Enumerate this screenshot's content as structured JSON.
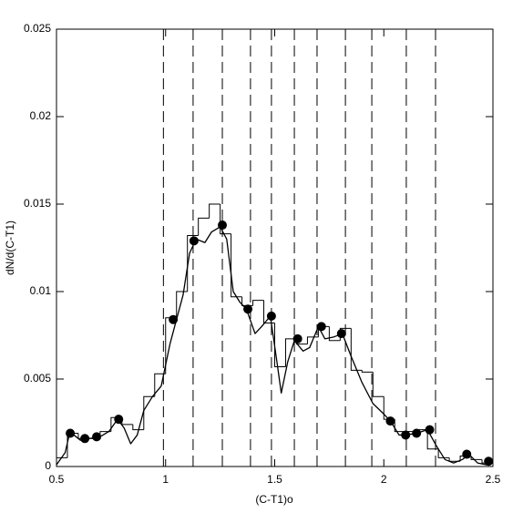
{
  "chart_data": {
    "type": "histogram",
    "xlabel": "(C-T1)o",
    "ylabel": "dN/d(C-T1)",
    "xlim": [
      0.5,
      2.5
    ],
    "ylim": [
      0,
      0.025
    ],
    "xticks": [
      0.5,
      1,
      1.5,
      2,
      2.5
    ],
    "yticks": [
      0,
      0.005,
      0.01,
      0.015,
      0.02,
      0.025
    ],
    "color": "#000000",
    "bins": [
      0.5,
      0.55,
      0.6,
      0.65,
      0.7,
      0.75,
      0.8,
      0.85,
      0.9,
      0.95,
      1.0,
      1.05,
      1.1,
      1.15,
      1.2,
      1.25,
      1.3,
      1.35,
      1.4,
      1.45,
      1.5,
      1.55,
      1.6,
      1.65,
      1.7,
      1.75,
      1.8,
      1.85,
      1.9,
      1.95,
      2.0,
      2.05,
      2.1,
      2.15,
      2.2,
      2.25,
      2.3,
      2.35,
      2.4,
      2.45,
      2.5
    ],
    "counts": [
      0.0005,
      0.0019,
      0.0016,
      0.0016,
      0.002,
      0.0028,
      0.0024,
      0.0021,
      0.004,
      0.0053,
      0.0085,
      0.01,
      0.0132,
      0.0142,
      0.015,
      0.0133,
      0.0097,
      0.0092,
      0.0095,
      0.0082,
      0.0057,
      0.0073,
      0.007,
      0.0074,
      0.008,
      0.0072,
      0.0079,
      0.0055,
      0.0054,
      0.004,
      0.0027,
      0.002,
      0.002,
      0.0021,
      0.001,
      0.0005,
      0.0003,
      0.0006,
      0.0004,
      0.0002
    ],
    "curve": {
      "x": [
        0.5,
        0.54,
        0.56,
        0.58,
        0.61,
        0.65,
        0.7,
        0.74,
        0.78,
        0.81,
        0.84,
        0.87,
        0.9,
        0.94,
        0.98,
        1.02,
        1.05,
        1.08,
        1.11,
        1.14,
        1.18,
        1.21,
        1.25,
        1.28,
        1.31,
        1.34,
        1.37,
        1.41,
        1.44,
        1.48,
        1.51,
        1.53,
        1.56,
        1.59,
        1.63,
        1.66,
        1.7,
        1.73,
        1.77,
        1.81,
        1.85,
        1.9,
        1.95,
        2.0,
        2.03,
        2.07,
        2.1,
        2.15,
        2.2,
        2.24,
        2.28,
        2.32,
        2.36,
        2.39,
        2.43,
        2.47,
        2.5
      ],
      "values": [
        0.0001,
        0.0008,
        0.0019,
        0.0018,
        0.0015,
        0.0016,
        0.0017,
        0.002,
        0.0027,
        0.0022,
        0.0013,
        0.0018,
        0.0032,
        0.004,
        0.0046,
        0.007,
        0.0084,
        0.0098,
        0.0122,
        0.013,
        0.0128,
        0.0134,
        0.0137,
        0.013,
        0.01,
        0.0094,
        0.009,
        0.0076,
        0.008,
        0.0086,
        0.006,
        0.0042,
        0.006,
        0.0072,
        0.0066,
        0.0068,
        0.008,
        0.0073,
        0.0074,
        0.0076,
        0.0063,
        0.0048,
        0.0036,
        0.003,
        0.0026,
        0.0018,
        0.0018,
        0.0019,
        0.0021,
        0.0012,
        0.0004,
        0.0002,
        0.0004,
        0.0007,
        0.0002,
        0.0001,
        0.0003
      ]
    },
    "points": {
      "x": [
        0.563,
        0.63,
        0.684,
        0.785,
        1.035,
        1.13,
        1.26,
        1.377,
        1.485,
        1.605,
        1.714,
        1.806,
        2.03,
        2.1,
        2.15,
        2.21,
        2.38,
        2.48
      ],
      "values": [
        0.0019,
        0.0016,
        0.0017,
        0.0027,
        0.0084,
        0.0129,
        0.0138,
        0.009,
        0.0086,
        0.0073,
        0.008,
        0.0076,
        0.0026,
        0.0018,
        0.0019,
        0.0021,
        0.0007,
        0.0003
      ]
    },
    "vlines": [
      0.99,
      1.126,
      1.26,
      1.389,
      1.485,
      1.59,
      1.694,
      1.824,
      1.945,
      2.103,
      2.237
    ]
  }
}
